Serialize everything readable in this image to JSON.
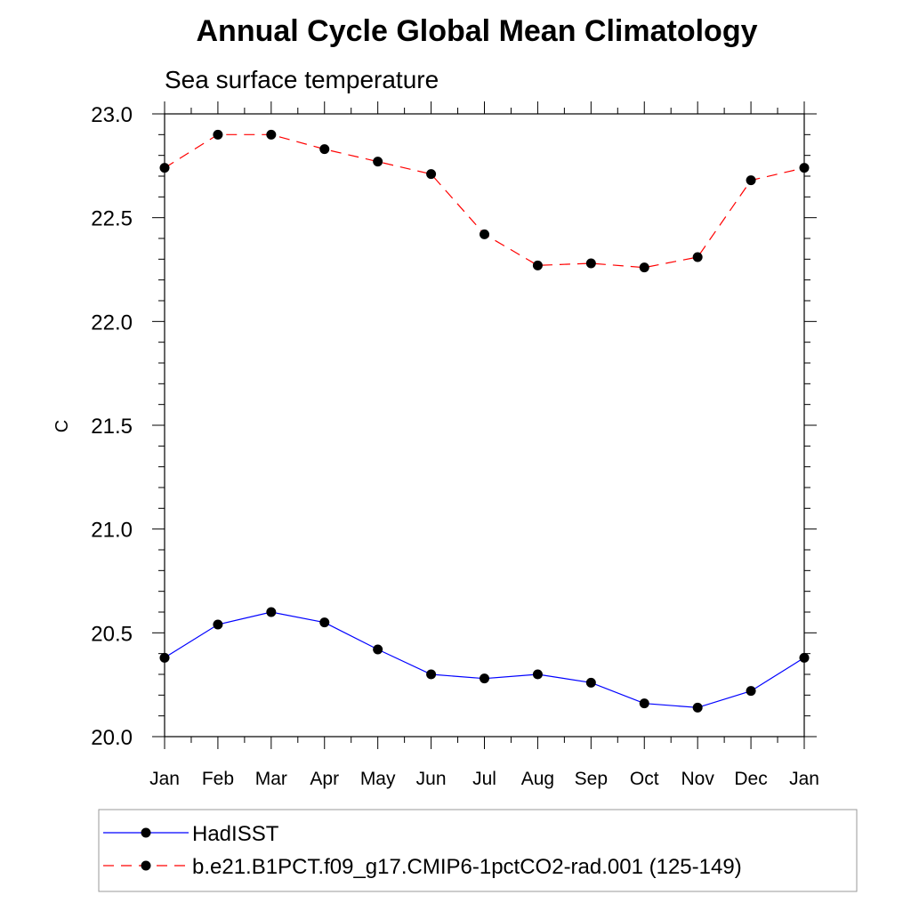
{
  "chart_data": {
    "type": "line",
    "title": "Annual Cycle Global Mean Climatology",
    "subtitle": "Sea surface temperature",
    "ylabel": "C",
    "xlabel": "",
    "categories": [
      "Jan",
      "Feb",
      "Mar",
      "Apr",
      "May",
      "Jun",
      "Jul",
      "Aug",
      "Sep",
      "Oct",
      "Nov",
      "Dec",
      "Jan"
    ],
    "ylim": [
      20.0,
      23.0
    ],
    "yticks": [
      "20.0",
      "20.5",
      "21.0",
      "21.5",
      "22.0",
      "22.5",
      "23.0"
    ],
    "series": [
      {
        "name": "HadISST",
        "color": "#0000ff",
        "dash": "solid",
        "values": [
          20.38,
          20.54,
          20.6,
          20.55,
          20.42,
          20.3,
          20.28,
          20.3,
          20.26,
          20.16,
          20.14,
          20.22,
          20.38
        ]
      },
      {
        "name": "b.e21.B1PCT.f09_g17.CMIP6-1pctCO2-rad.001 (125-149)",
        "color": "#ff0000",
        "dash": "dashed",
        "values": [
          22.74,
          22.9,
          22.9,
          22.83,
          22.77,
          22.71,
          22.42,
          22.27,
          22.28,
          22.26,
          22.31,
          22.68,
          22.74
        ]
      }
    ],
    "legend_position": "bottom",
    "grid": false
  }
}
